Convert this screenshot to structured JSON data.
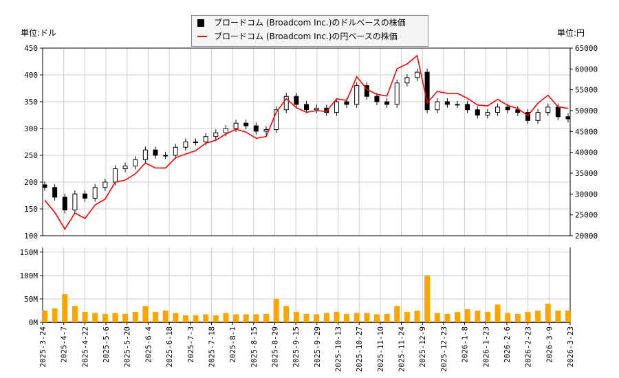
{
  "chart_data": {
    "type": "candlestick+line+bar",
    "legend": {
      "placement": "top-center",
      "entries": [
        "ブロードコム (Broadcom Inc.)のドルベースの株価",
        "ブロードコム (Broadcom Inc.)の円ベースの株価"
      ]
    },
    "left_unit": "単位:ドル",
    "right_unit": "単位:円",
    "usd_ylim": [
      100,
      450
    ],
    "usd_ticks": [
      "100",
      "150",
      "200",
      "250",
      "300",
      "350",
      "400",
      "450"
    ],
    "jpy_ylim": [
      20000,
      65000
    ],
    "jpy_ticks": [
      "20000",
      "25000",
      "30000",
      "35000",
      "40000",
      "45000",
      "50000",
      "55000",
      "60000",
      "65000"
    ],
    "volume_ylim": [
      0,
      160
    ],
    "volume_ticks": [
      "0M",
      "50M",
      "100M",
      "150M"
    ],
    "x_ticks": [
      "2025-3-24",
      "2025-4-7",
      "2025-4-22",
      "2025-5-6",
      "2025-5-20",
      "2025-6-4",
      "2025-6-18",
      "2025-7-3",
      "2025-7-18",
      "2025-8-1",
      "2025-8-15",
      "2025-8-29",
      "2025-9-15",
      "2025-9-29",
      "2025-10-13",
      "2025-10-27",
      "2025-11-10",
      "2025-11-24",
      "2025-12-9",
      "2025-12-23",
      "2026-1-8",
      "2026-1-23",
      "2026-2-6",
      "2026-2-23",
      "2026-3-9",
      "2026-3-23"
    ],
    "grid": true,
    "colors": {
      "usd_up": "#ffffff",
      "usd_down": "#000000",
      "jpy_line": "#ff0000",
      "volume": "#ffa500"
    },
    "dates": [
      "2025-3-24",
      "2025-3-31",
      "2025-4-7",
      "2025-4-14",
      "2025-4-21",
      "2025-4-28",
      "2025-5-5",
      "2025-5-12",
      "2025-5-19",
      "2025-5-27",
      "2025-6-2",
      "2025-6-9",
      "2025-6-16",
      "2025-6-23",
      "2025-6-30",
      "2025-7-7",
      "2025-7-14",
      "2025-7-21",
      "2025-7-28",
      "2025-8-4",
      "2025-8-11",
      "2025-8-18",
      "2025-8-25",
      "2025-9-2",
      "2025-9-8",
      "2025-9-15",
      "2025-9-22",
      "2025-9-29",
      "2025-10-6",
      "2025-10-13",
      "2025-10-20",
      "2025-10-27",
      "2025-11-3",
      "2025-11-10",
      "2025-11-17",
      "2025-11-24",
      "2025-12-1",
      "2025-12-8",
      "2025-12-15",
      "2025-12-22",
      "2025-12-29",
      "2026-1-5",
      "2026-1-12",
      "2026-1-19",
      "2026-1-26",
      "2026-2-2",
      "2026-2-9",
      "2026-2-16",
      "2026-2-23",
      "2026-3-2",
      "2026-3-9",
      "2026-3-16",
      "2026-3-23"
    ],
    "usd_open": [
      195,
      190,
      172,
      148,
      178,
      170,
      190,
      200,
      225,
      230,
      242,
      260,
      250,
      250,
      265,
      275,
      275,
      285,
      292,
      300,
      310,
      305,
      295,
      298,
      335,
      360,
      345,
      335,
      338,
      330,
      350,
      345,
      380,
      360,
      350,
      345,
      385,
      395,
      405,
      335,
      350,
      345,
      345,
      335,
      325,
      330,
      340,
      335,
      330,
      315,
      330,
      340,
      322
    ],
    "usd_close": [
      190,
      172,
      148,
      178,
      170,
      190,
      200,
      225,
      230,
      242,
      260,
      250,
      250,
      265,
      275,
      275,
      285,
      292,
      300,
      310,
      305,
      295,
      298,
      335,
      360,
      345,
      335,
      338,
      330,
      350,
      345,
      380,
      360,
      350,
      345,
      385,
      395,
      405,
      335,
      350,
      345,
      345,
      335,
      325,
      330,
      340,
      335,
      330,
      315,
      330,
      340,
      322,
      318
    ],
    "jpy_close": [
      28500,
      25600,
      21600,
      25450,
      24150,
      27350,
      28800,
      32850,
      33350,
      34850,
      37450,
      36250,
      36250,
      38700,
      39600,
      40400,
      42200,
      42900,
      44400,
      45550,
      44850,
      43350,
      43800,
      49600,
      52900,
      50700,
      49600,
      50000,
      49800,
      52850,
      52450,
      58150,
      55100,
      53900,
      53500,
      60050,
      61200,
      63200,
      51900,
      54600,
      54150,
      54150,
      52950,
      51350,
      51150,
      52700,
      51250,
      50500,
      48800,
      51800,
      53700,
      50900,
      50550
    ],
    "volume_millions": [
      25,
      30,
      60,
      35,
      22,
      20,
      18,
      20,
      18,
      22,
      35,
      22,
      25,
      20,
      15,
      15,
      17,
      15,
      20,
      17,
      17,
      17,
      18,
      50,
      35,
      22,
      18,
      17,
      20,
      22,
      18,
      20,
      20,
      17,
      18,
      35,
      22,
      25,
      100,
      20,
      18,
      22,
      28,
      25,
      22,
      38,
      20,
      18,
      22,
      25,
      40,
      25,
      25
    ]
  }
}
